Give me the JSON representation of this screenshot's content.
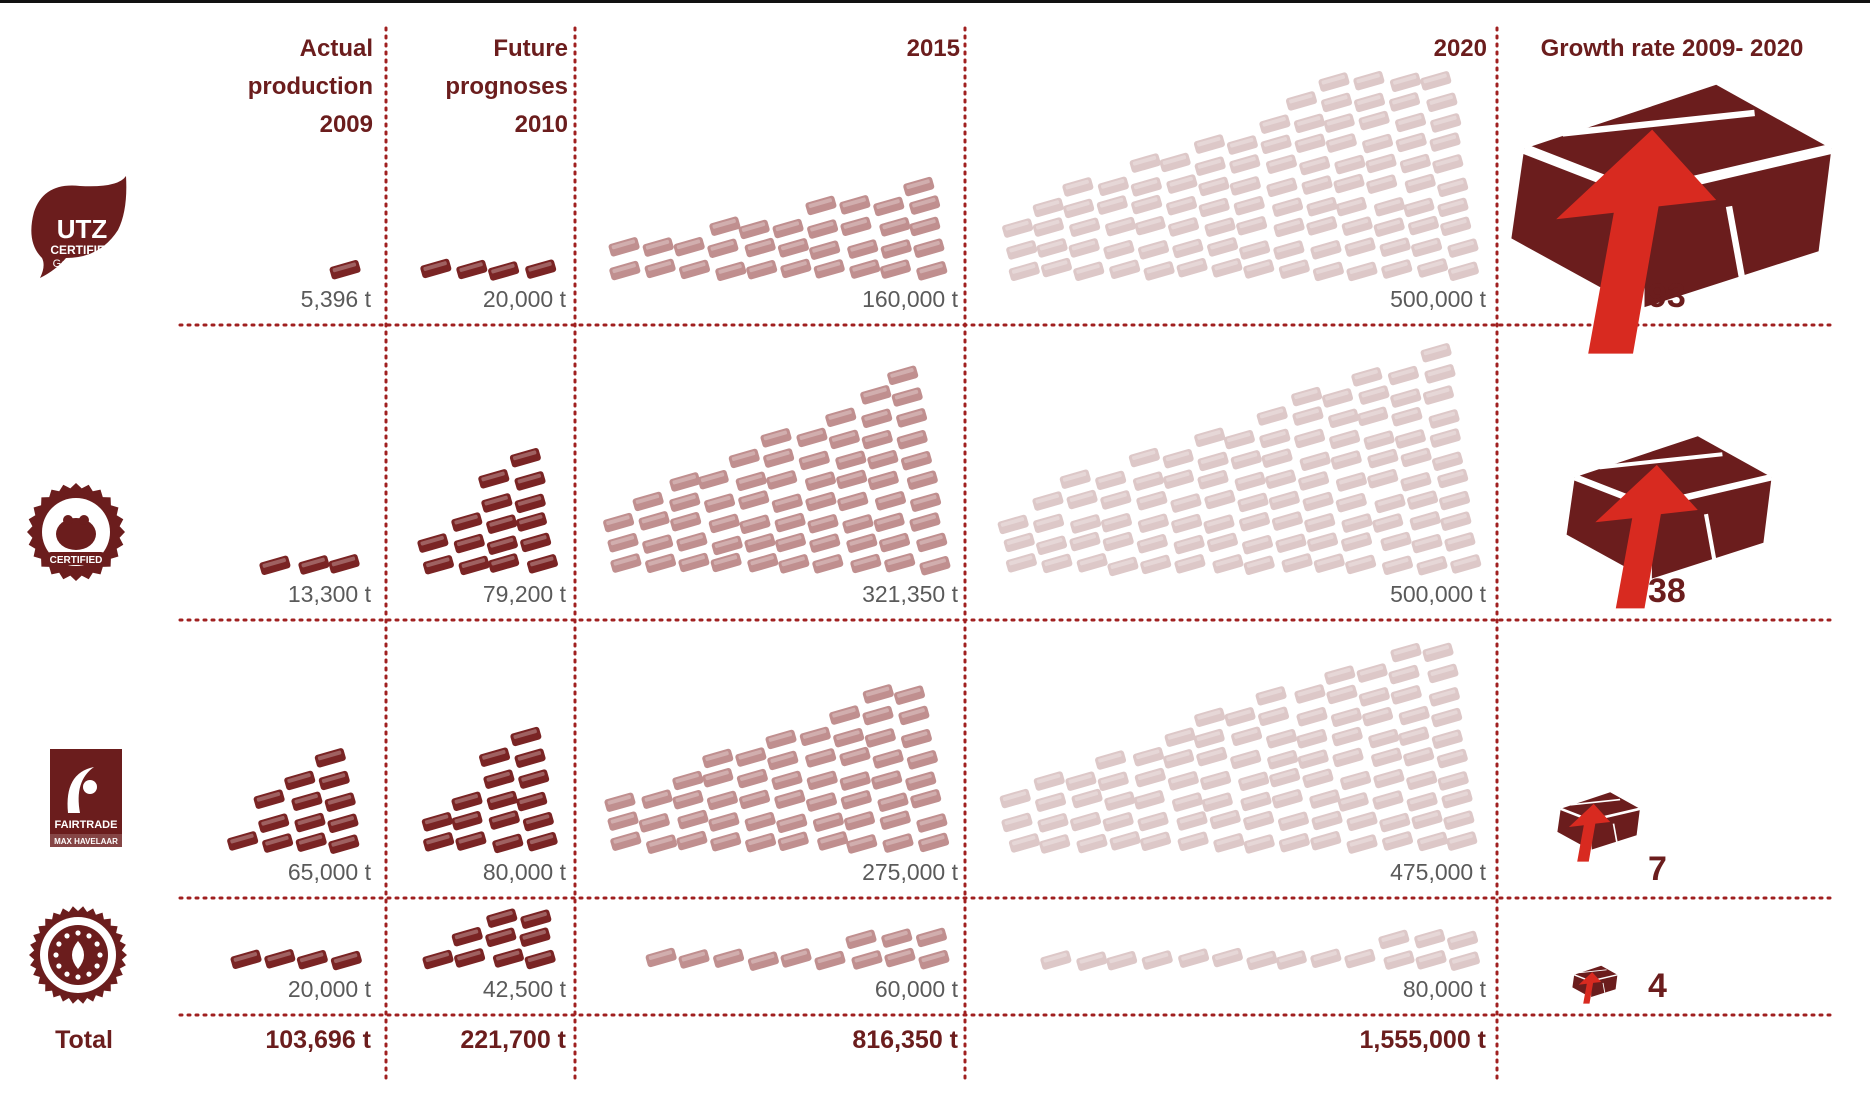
{
  "chart_data": {
    "type": "table",
    "colors": {
      "accent": "#6b1d1d",
      "bar_dark": "#7a2424",
      "bar_mid": "#c08f8f",
      "bar_light": "#ddc8c8",
      "arrow": "#d82a20",
      "divider": "#a02020",
      "value_text": "#5a5a5a"
    },
    "headers": {
      "col1": [
        "Actual",
        "production",
        "2009"
      ],
      "col2": [
        "Future",
        "prognoses",
        "2010"
      ],
      "col3": "2015",
      "col4": "2020",
      "col5": "Growth rate 2009- 2020"
    },
    "rows": [
      {
        "logo": "utz-certified-logo",
        "logo_text": [
          "UTZ",
          "CERTIFIED",
          "Good inside"
        ],
        "labels": [
          "5,396 t",
          "20,000 t",
          "160,000 t",
          "500,000 t"
        ],
        "values": [
          5396,
          20000,
          160000,
          500000
        ],
        "growth": 93
      },
      {
        "logo": "rainforest-alliance-logo",
        "logo_text": [
          "CERTIFIED"
        ],
        "labels": [
          "13,300 t",
          "79,200 t",
          "321,350 t",
          "500,000 t"
        ],
        "values": [
          13300,
          79200,
          321350,
          500000
        ],
        "growth": 38
      },
      {
        "logo": "fairtrade-logo",
        "logo_text": [
          "FAIRTRADE",
          "MAX HAVELAAR"
        ],
        "labels": [
          "65,000 t",
          "80,000 t",
          "275,000 t",
          "475,000 t"
        ],
        "values": [
          65000,
          80000,
          275000,
          475000
        ],
        "growth": 7
      },
      {
        "logo": "organic-logo",
        "logo_text": [],
        "labels": [
          "20,000 t",
          "42,500 t",
          "60,000 t",
          "80,000 t"
        ],
        "values": [
          20000,
          42500,
          60000,
          80000
        ],
        "growth": 4
      }
    ],
    "total": {
      "label": "Total",
      "values": [
        "103,696 t",
        "221,700 t",
        "816,350 t",
        "1,555,000 t"
      ]
    }
  }
}
